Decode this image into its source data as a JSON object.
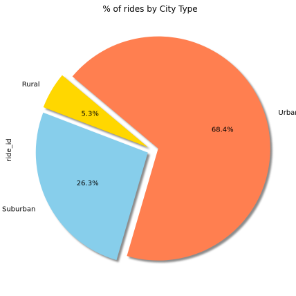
{
  "chart_data": {
    "type": "pie",
    "title": "% of rides by City Type",
    "ylabel": "ride_id",
    "start_angle_deg": 140,
    "explode_ratio": 0.05,
    "shadow": true,
    "slices": [
      {
        "label": "Rural",
        "pct_label": "5.3%",
        "value": 5.3,
        "color": "#FFD700"
      },
      {
        "label": "Suburban",
        "pct_label": "26.3%",
        "value": 26.3,
        "color": "#87CEEB"
      },
      {
        "label": "Urban",
        "pct_label": "68.4%",
        "value": 68.4,
        "color": "#FF7F50"
      }
    ]
  }
}
